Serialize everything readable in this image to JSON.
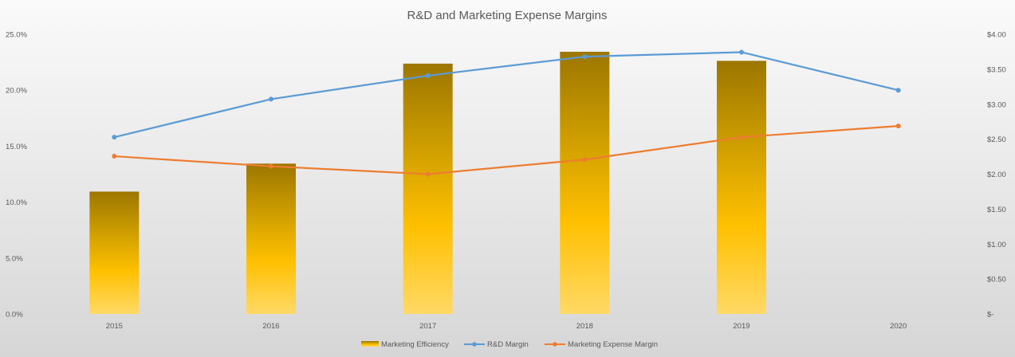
{
  "chart_data": {
    "type": "bar",
    "title": "R&D and Marketing Expense Margins",
    "categories": [
      "2015",
      "2016",
      "2017",
      "2018",
      "2019",
      "2020"
    ],
    "y_left": {
      "ticks": [
        "0.0%",
        "5.0%",
        "10.0%",
        "15.0%",
        "20.0%",
        "25.0%"
      ],
      "ylim": [
        0,
        25
      ]
    },
    "y_right": {
      "ticks": [
        "$-",
        "$0.50",
        "$1.00",
        "$1.50",
        "$2.00",
        "$2.50",
        "$3.00",
        "$3.50",
        "$4.00"
      ],
      "ylim": [
        0,
        4
      ]
    },
    "series": [
      {
        "name": "Marketing Efficiency",
        "type": "bar",
        "axis": "right",
        "values": [
          1.75,
          2.15,
          3.58,
          3.75,
          3.62,
          null
        ],
        "color": "#ffc000"
      },
      {
        "name": "R&D Margin",
        "type": "line",
        "axis": "left",
        "values": [
          15.8,
          19.2,
          21.3,
          23.0,
          23.4,
          20.0
        ],
        "color": "#5b9bd5"
      },
      {
        "name": "Marketing Expense Margin",
        "type": "line",
        "axis": "left",
        "values": [
          14.1,
          13.2,
          12.5,
          13.8,
          15.8,
          16.8
        ],
        "color": "#ed7d31"
      }
    ],
    "legend_position": "bottom",
    "grid": false
  }
}
